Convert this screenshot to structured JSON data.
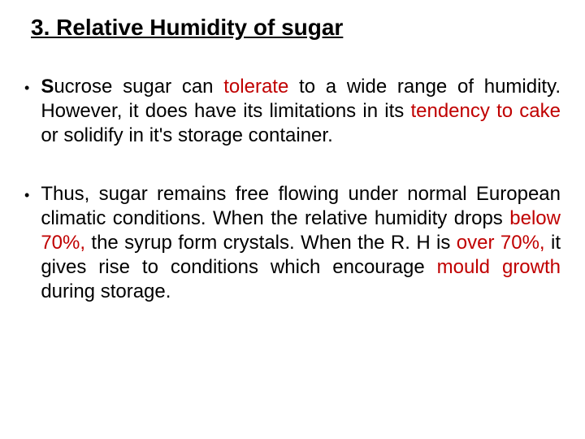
{
  "title": "3. Relative Humidity of sugar",
  "bullets": [
    {
      "parts": [
        {
          "text": "S",
          "bold": true,
          "red": false
        },
        {
          "text": "ucrose sugar can ",
          "bold": false,
          "red": false
        },
        {
          "text": "tolerate",
          "bold": false,
          "red": true
        },
        {
          "text": " to a wide range of humidity.  However, it does have its limitations in its ",
          "bold": false,
          "red": false
        },
        {
          "text": "tendency to cake",
          "bold": false,
          "red": true
        },
        {
          "text": " or solidify in it's storage container.",
          "bold": false,
          "red": false
        }
      ]
    },
    {
      "parts": [
        {
          "text": "Thus, sugar remains free flowing under normal European climatic conditions.  When the relative humidity drops ",
          "bold": false,
          "red": false
        },
        {
          "text": "below 70%,",
          "bold": false,
          "red": true
        },
        {
          "text": " the syrup form crystals. When the R. H is ",
          "bold": false,
          "red": false
        },
        {
          "text": "over 70%,",
          "bold": false,
          "red": true
        },
        {
          "text": " it gives rise to conditions which encourage ",
          "bold": false,
          "red": false
        },
        {
          "text": "mould growth",
          "bold": false,
          "red": true
        },
        {
          "text": " during storage.",
          "bold": false,
          "red": false
        }
      ]
    }
  ],
  "colors": {
    "text": "#000000",
    "highlight": "#c00000",
    "background": "#ffffff"
  }
}
